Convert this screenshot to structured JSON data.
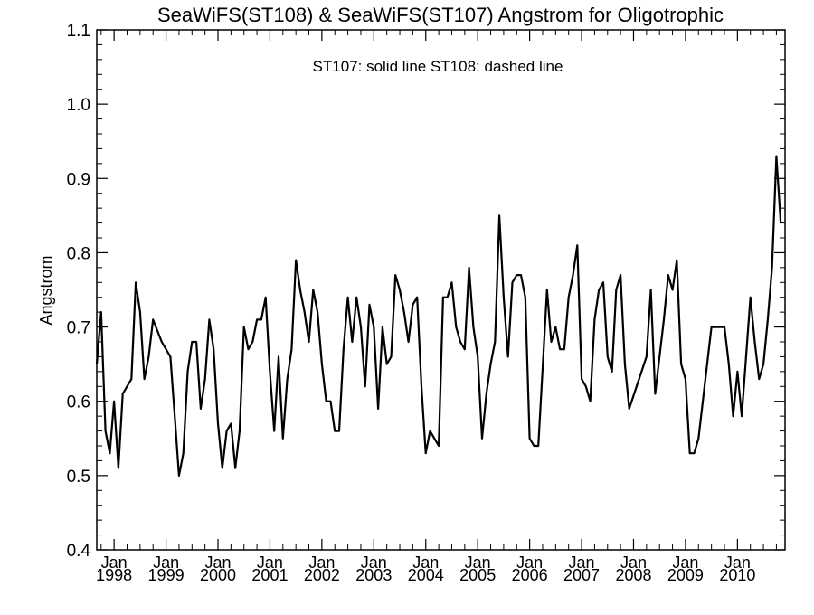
{
  "chart_data": {
    "type": "line",
    "title": "SeaWiFS(ST108) & SeaWiFS(ST107)  Angstrom for Oligotrophic",
    "annotation": "ST107: solid line   ST108: dashed line",
    "ylabel": "Angstrom",
    "xlabel": "",
    "ylim": [
      0.4,
      1.1
    ],
    "xlim": [
      "1997-09",
      "2010-12"
    ],
    "grid": false,
    "y_ticks": [
      {
        "value": 0.4,
        "label": "0.4"
      },
      {
        "value": 0.5,
        "label": "0.5"
      },
      {
        "value": 0.6,
        "label": "0.6"
      },
      {
        "value": 0.7,
        "label": "0.7"
      },
      {
        "value": 0.8,
        "label": "0.8"
      },
      {
        "value": 0.9,
        "label": "0.9"
      },
      {
        "value": 1.0,
        "label": "1.0"
      },
      {
        "value": 1.1,
        "label": "1.1"
      }
    ],
    "x_ticks": [
      {
        "date": "1998-01",
        "label_top": "Jan",
        "label_bottom": "1998"
      },
      {
        "date": "1999-01",
        "label_top": "Jan",
        "label_bottom": "1999"
      },
      {
        "date": "2000-01",
        "label_top": "Jan",
        "label_bottom": "2000"
      },
      {
        "date": "2001-01",
        "label_top": "Jan",
        "label_bottom": "2001"
      },
      {
        "date": "2002-01",
        "label_top": "Jan",
        "label_bottom": "2002"
      },
      {
        "date": "2003-01",
        "label_top": "Jan",
        "label_bottom": "2003"
      },
      {
        "date": "2004-01",
        "label_top": "Jan",
        "label_bottom": "2004"
      },
      {
        "date": "2005-01",
        "label_top": "Jan",
        "label_bottom": "2005"
      },
      {
        "date": "2006-01",
        "label_top": "Jan",
        "label_bottom": "2006"
      },
      {
        "date": "2007-01",
        "label_top": "Jan",
        "label_bottom": "2007"
      },
      {
        "date": "2008-01",
        "label_top": "Jan",
        "label_bottom": "2008"
      },
      {
        "date": "2009-01",
        "label_top": "Jan",
        "label_bottom": "2009"
      },
      {
        "date": "2010-01",
        "label_top": "Jan",
        "label_bottom": "2010"
      }
    ],
    "series": [
      {
        "line_style": "solid",
        "color": "#000000",
        "points": [
          [
            "1997-09",
            0.65
          ],
          [
            "1997-10",
            0.72
          ],
          [
            "1997-11",
            0.56
          ],
          [
            "1997-12",
            0.53
          ],
          [
            "1998-01",
            0.6
          ],
          [
            "1998-02",
            0.51
          ],
          [
            "1998-03",
            0.61
          ],
          [
            "1998-05",
            0.63
          ],
          [
            "1998-06",
            0.76
          ],
          [
            "1998-07",
            0.72
          ],
          [
            "1998-08",
            0.63
          ],
          [
            "1998-09",
            0.66
          ],
          [
            "1998-10",
            0.71
          ],
          [
            "1998-12",
            0.68
          ],
          [
            "1999-02",
            0.66
          ],
          [
            "1999-03",
            0.58
          ],
          [
            "1999-04",
            0.5
          ],
          [
            "1999-05",
            0.53
          ],
          [
            "1999-06",
            0.64
          ],
          [
            "1999-07",
            0.68
          ],
          [
            "1999-08",
            0.68
          ],
          [
            "1999-09",
            0.59
          ],
          [
            "1999-10",
            0.63
          ],
          [
            "1999-11",
            0.71
          ],
          [
            "1999-12",
            0.67
          ],
          [
            "2000-01",
            0.57
          ],
          [
            "2000-02",
            0.51
          ],
          [
            "2000-03",
            0.56
          ],
          [
            "2000-04",
            0.57
          ],
          [
            "2000-05",
            0.51
          ],
          [
            "2000-06",
            0.56
          ],
          [
            "2000-07",
            0.7
          ],
          [
            "2000-08",
            0.67
          ],
          [
            "2000-09",
            0.68
          ],
          [
            "2000-10",
            0.71
          ],
          [
            "2000-11",
            0.71
          ],
          [
            "2000-12",
            0.74
          ],
          [
            "2001-01",
            0.64
          ],
          [
            "2001-02",
            0.56
          ],
          [
            "2001-03",
            0.66
          ],
          [
            "2001-04",
            0.55
          ],
          [
            "2001-05",
            0.63
          ],
          [
            "2001-06",
            0.67
          ],
          [
            "2001-07",
            0.79
          ],
          [
            "2001-08",
            0.75
          ],
          [
            "2001-09",
            0.72
          ],
          [
            "2001-10",
            0.68
          ],
          [
            "2001-11",
            0.75
          ],
          [
            "2001-12",
            0.72
          ],
          [
            "2002-01",
            0.65
          ],
          [
            "2002-02",
            0.6
          ],
          [
            "2002-03",
            0.6
          ],
          [
            "2002-04",
            0.56
          ],
          [
            "2002-05",
            0.56
          ],
          [
            "2002-06",
            0.67
          ],
          [
            "2002-07",
            0.74
          ],
          [
            "2002-08",
            0.68
          ],
          [
            "2002-09",
            0.74
          ],
          [
            "2002-10",
            0.7
          ],
          [
            "2002-11",
            0.62
          ],
          [
            "2002-12",
            0.73
          ],
          [
            "2003-01",
            0.7
          ],
          [
            "2003-02",
            0.59
          ],
          [
            "2003-03",
            0.7
          ],
          [
            "2003-04",
            0.65
          ],
          [
            "2003-05",
            0.66
          ],
          [
            "2003-06",
            0.77
          ],
          [
            "2003-07",
            0.75
          ],
          [
            "2003-08",
            0.72
          ],
          [
            "2003-09",
            0.68
          ],
          [
            "2003-10",
            0.73
          ],
          [
            "2003-11",
            0.74
          ],
          [
            "2003-12",
            0.62
          ],
          [
            "2004-01",
            0.53
          ],
          [
            "2004-02",
            0.56
          ],
          [
            "2004-03",
            0.55
          ],
          [
            "2004-04",
            0.54
          ],
          [
            "2004-05",
            0.74
          ],
          [
            "2004-06",
            0.74
          ],
          [
            "2004-07",
            0.76
          ],
          [
            "2004-08",
            0.7
          ],
          [
            "2004-09",
            0.68
          ],
          [
            "2004-10",
            0.67
          ],
          [
            "2004-11",
            0.78
          ],
          [
            "2004-12",
            0.7
          ],
          [
            "2005-01",
            0.66
          ],
          [
            "2005-02",
            0.55
          ],
          [
            "2005-03",
            0.61
          ],
          [
            "2005-04",
            0.65
          ],
          [
            "2005-05",
            0.68
          ],
          [
            "2005-06",
            0.85
          ],
          [
            "2005-07",
            0.74
          ],
          [
            "2005-08",
            0.66
          ],
          [
            "2005-09",
            0.76
          ],
          [
            "2005-10",
            0.77
          ],
          [
            "2005-11",
            0.77
          ],
          [
            "2005-12",
            0.74
          ],
          [
            "2006-01",
            0.55
          ],
          [
            "2006-02",
            0.54
          ],
          [
            "2006-03",
            0.54
          ],
          [
            "2006-05",
            0.75
          ],
          [
            "2006-06",
            0.68
          ],
          [
            "2006-07",
            0.7
          ],
          [
            "2006-08",
            0.67
          ],
          [
            "2006-09",
            0.67
          ],
          [
            "2006-10",
            0.74
          ],
          [
            "2006-11",
            0.77
          ],
          [
            "2006-12",
            0.81
          ],
          [
            "2007-01",
            0.63
          ],
          [
            "2007-02",
            0.62
          ],
          [
            "2007-03",
            0.6
          ],
          [
            "2007-04",
            0.71
          ],
          [
            "2007-05",
            0.75
          ],
          [
            "2007-06",
            0.76
          ],
          [
            "2007-07",
            0.66
          ],
          [
            "2007-08",
            0.64
          ],
          [
            "2007-09",
            0.75
          ],
          [
            "2007-10",
            0.77
          ],
          [
            "2007-11",
            0.65
          ],
          [
            "2007-12",
            0.59
          ],
          [
            "2008-04",
            0.66
          ],
          [
            "2008-05",
            0.75
          ],
          [
            "2008-06",
            0.61
          ],
          [
            "2008-07",
            0.66
          ],
          [
            "2008-08",
            0.71
          ],
          [
            "2008-09",
            0.77
          ],
          [
            "2008-10",
            0.75
          ],
          [
            "2008-11",
            0.79
          ],
          [
            "2008-12",
            0.65
          ],
          [
            "2009-01",
            0.63
          ],
          [
            "2009-02",
            0.53
          ],
          [
            "2009-03",
            0.53
          ],
          [
            "2009-04",
            0.55
          ],
          [
            "2009-07",
            0.7
          ],
          [
            "2009-10",
            0.7
          ],
          [
            "2009-11",
            0.65
          ],
          [
            "2009-12",
            0.58
          ],
          [
            "2010-01",
            0.64
          ],
          [
            "2010-02",
            0.58
          ],
          [
            "2010-03",
            0.66
          ],
          [
            "2010-04",
            0.74
          ],
          [
            "2010-05",
            0.68
          ],
          [
            "2010-06",
            0.63
          ],
          [
            "2010-07",
            0.65
          ],
          [
            "2010-08",
            0.71
          ],
          [
            "2010-09",
            0.78
          ],
          [
            "2010-10",
            0.93
          ],
          [
            "2010-11",
            0.84
          ]
        ]
      }
    ]
  }
}
